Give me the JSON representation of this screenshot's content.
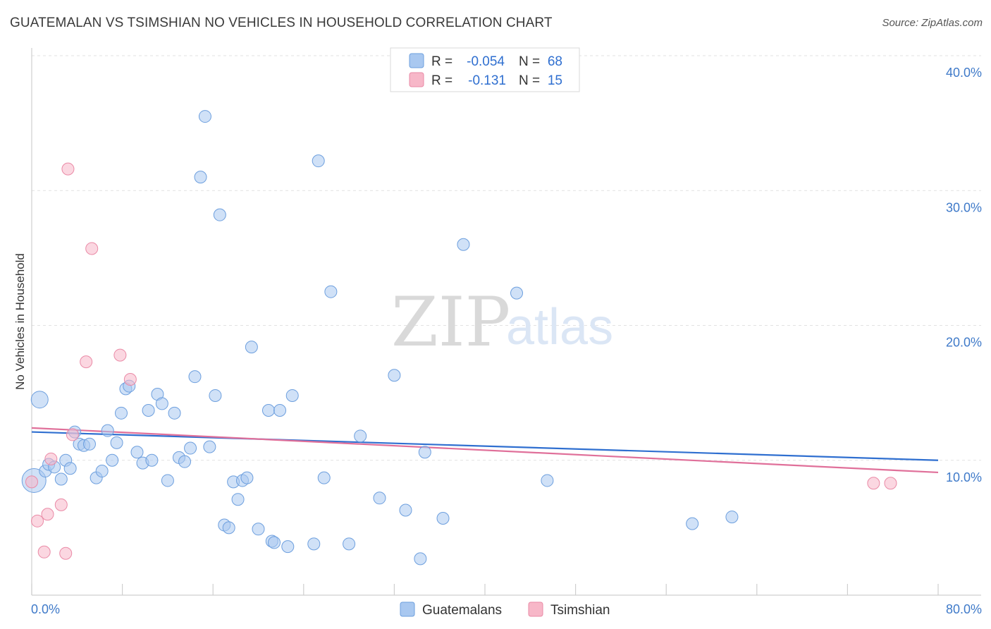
{
  "header": {
    "title": "GUATEMALAN VS TSIMSHIAN NO VEHICLES IN HOUSEHOLD CORRELATION CHART",
    "source": "Source: ZipAtlas.com"
  },
  "watermark": {
    "zip": "ZIP",
    "atlas": "atlas"
  },
  "legend": {
    "series": [
      {
        "r_label": "R =",
        "r_value": "-0.054",
        "n_label": "N =",
        "n_value": "68",
        "color": "#a9c8f0"
      },
      {
        "r_label": "R =",
        "r_value": "-0.131",
        "n_label": "N =",
        "n_value": "15",
        "color": "#f7b7c8"
      }
    ]
  },
  "chart_data": {
    "type": "scatter",
    "title": "GUATEMALAN VS TSIMSHIAN NO VEHICLES IN HOUSEHOLD CORRELATION CHART",
    "xlabel": "",
    "ylabel": "No Vehicles in Household",
    "xlim": [
      0,
      80
    ],
    "ylim": [
      0,
      40
    ],
    "x_tick_labels": [
      "0.0%",
      "80.0%"
    ],
    "y_ticks": [
      {
        "value": 10,
        "label": "10.0%"
      },
      {
        "value": 20,
        "label": "20.0%"
      },
      {
        "value": 30,
        "label": "30.0%"
      },
      {
        "value": 40,
        "label": "40.0%"
      }
    ],
    "series": [
      {
        "name": "Guatemalans",
        "color": "#a9c8f0",
        "stroke": "#6d9fde",
        "trend_color": "#2f6fd0",
        "trend": {
          "x": [
            0,
            80
          ],
          "y": [
            12.1,
            10.0
          ]
        },
        "points": [
          [
            0.2,
            8.5,
            "lg"
          ],
          [
            0.7,
            14.5,
            "md"
          ],
          [
            1.2,
            9.2
          ],
          [
            1.5,
            9.7
          ],
          [
            2.0,
            9.5
          ],
          [
            2.6,
            8.6
          ],
          [
            3.0,
            10.0
          ],
          [
            3.4,
            9.4
          ],
          [
            3.8,
            12.1
          ],
          [
            4.2,
            11.2
          ],
          [
            4.6,
            11.1
          ],
          [
            5.1,
            11.2
          ],
          [
            5.7,
            8.7
          ],
          [
            6.2,
            9.2
          ],
          [
            6.7,
            12.2
          ],
          [
            7.1,
            10.0
          ],
          [
            7.5,
            11.3
          ],
          [
            7.9,
            13.5
          ],
          [
            8.3,
            15.3
          ],
          [
            8.6,
            15.5
          ],
          [
            9.3,
            10.6
          ],
          [
            9.8,
            9.8
          ],
          [
            10.3,
            13.7
          ],
          [
            10.6,
            10.0
          ],
          [
            11.1,
            14.9
          ],
          [
            11.5,
            14.2
          ],
          [
            12.0,
            8.5
          ],
          [
            12.6,
            13.5
          ],
          [
            13.0,
            10.2
          ],
          [
            13.5,
            9.9
          ],
          [
            14.0,
            10.9
          ],
          [
            14.4,
            16.2
          ],
          [
            14.9,
            31.0
          ],
          [
            15.3,
            35.5
          ],
          [
            15.7,
            11.0
          ],
          [
            16.2,
            14.8
          ],
          [
            16.6,
            28.2
          ],
          [
            17.0,
            5.2
          ],
          [
            17.4,
            5.0
          ],
          [
            17.8,
            8.4
          ],
          [
            18.2,
            7.1
          ],
          [
            18.6,
            8.5
          ],
          [
            19.0,
            8.7
          ],
          [
            19.4,
            18.4
          ],
          [
            20.0,
            4.9
          ],
          [
            20.9,
            13.7
          ],
          [
            21.2,
            4.0
          ],
          [
            21.4,
            3.9
          ],
          [
            21.9,
            13.7
          ],
          [
            22.6,
            3.6
          ],
          [
            23.0,
            14.8
          ],
          [
            24.9,
            3.8
          ],
          [
            25.3,
            32.2
          ],
          [
            25.8,
            8.7
          ],
          [
            26.4,
            22.5
          ],
          [
            28.0,
            3.8
          ],
          [
            29.0,
            11.8
          ],
          [
            30.7,
            7.2
          ],
          [
            32.0,
            16.3
          ],
          [
            33.0,
            6.3
          ],
          [
            34.3,
            2.7
          ],
          [
            34.7,
            10.6
          ],
          [
            36.3,
            5.7
          ],
          [
            38.1,
            26.0
          ],
          [
            42.8,
            22.4
          ],
          [
            45.5,
            8.5
          ],
          [
            58.3,
            5.3
          ],
          [
            61.8,
            5.8
          ]
        ]
      },
      {
        "name": "Tsimshian",
        "color": "#f7b7c8",
        "stroke": "#ea8aa6",
        "trend_color": "#e0709a",
        "trend": {
          "x": [
            0,
            80
          ],
          "y": [
            12.4,
            9.1
          ]
        },
        "points": [
          [
            0.0,
            8.4
          ],
          [
            0.5,
            5.5
          ],
          [
            1.1,
            3.2
          ],
          [
            1.4,
            6.0
          ],
          [
            1.7,
            10.1
          ],
          [
            2.6,
            6.7
          ],
          [
            3.0,
            3.1
          ],
          [
            3.2,
            31.6
          ],
          [
            3.6,
            11.9
          ],
          [
            4.8,
            17.3
          ],
          [
            5.3,
            25.7
          ],
          [
            7.8,
            17.8
          ],
          [
            8.7,
            16.0
          ],
          [
            74.3,
            8.3
          ],
          [
            75.8,
            8.3
          ]
        ]
      }
    ]
  }
}
